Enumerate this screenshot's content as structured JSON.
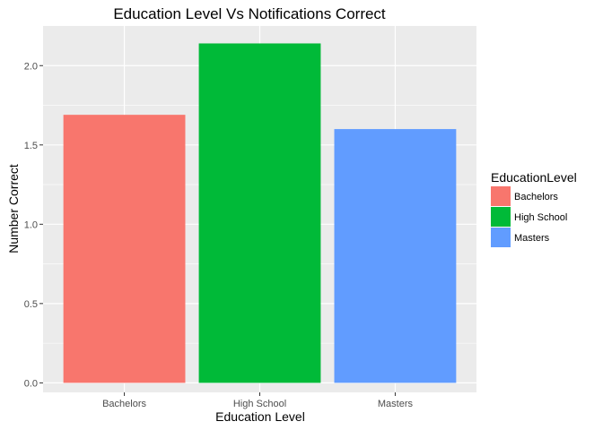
{
  "chart_data": {
    "type": "bar",
    "title": "Education Level Vs Notifications Correct",
    "xlabel": "Education Level",
    "ylabel": "Number Correct",
    "categories": [
      "Bachelors",
      "High School",
      "Masters"
    ],
    "values": [
      1.69,
      2.14,
      1.6
    ],
    "colors": [
      "#F8766D",
      "#00BA38",
      "#619CFF"
    ],
    "ylim": [
      -0.06,
      2.25
    ],
    "yticks": [
      0.0,
      0.5,
      1.0,
      1.5,
      2.0
    ],
    "ytick_labels": [
      "0.0",
      "0.5",
      "1.0",
      "1.5",
      "2.0"
    ],
    "grid": true,
    "panel_background": "#EBEBEB",
    "legend": {
      "title": "EducationLevel",
      "position": "right",
      "entries": [
        "Bachelors",
        "High School",
        "Masters"
      ]
    }
  }
}
